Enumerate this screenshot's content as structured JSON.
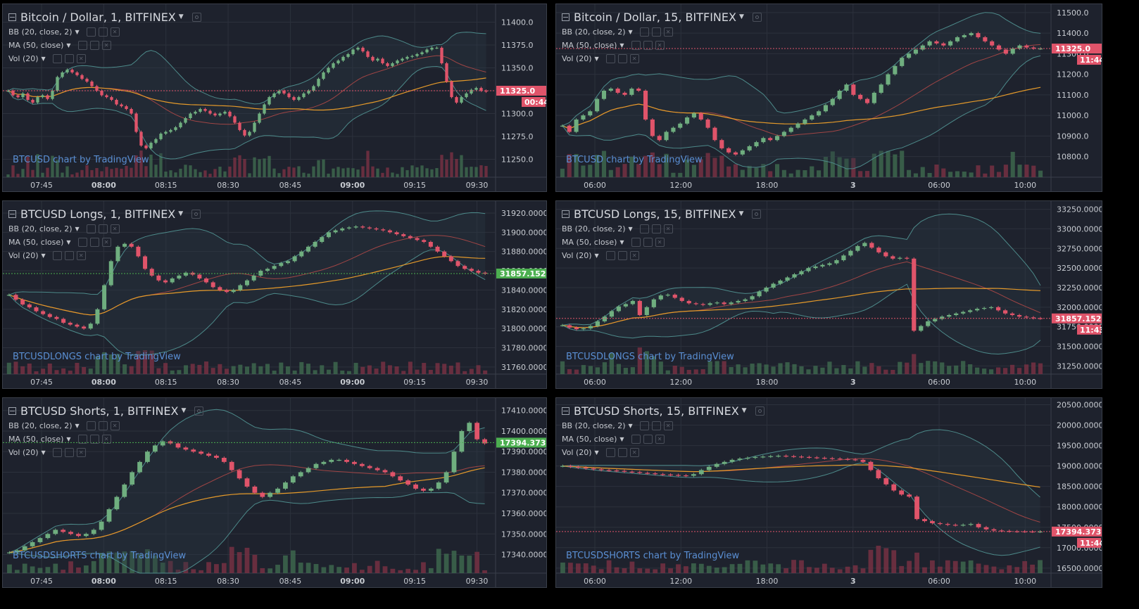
{
  "colors": {
    "background": "#1e222d",
    "grid": "#2c313c",
    "up": "#6fae7f",
    "down": "#e0546a",
    "bb": "#4d8a8a",
    "ma": "#e59a2a",
    "basis": "#a04545",
    "price_badge_red": "#e0546a",
    "price_badge_green": "#4caf50",
    "watermark": "#5a8fd4"
  },
  "panels": [
    {
      "id": "p1",
      "title": "Bitcoin / Dollar, 1, BITFINEX",
      "indicators": [
        "BB (20, close, 2)",
        "MA (50, close)",
        "Vol (20)"
      ],
      "watermark": "BTCUSD chart by TradingView",
      "y_ticks": [
        "11400.0",
        "11375.0",
        "11350.0",
        "11325.0",
        "11300.0",
        "11275.0",
        "11250.0"
      ],
      "x_ticks": [
        "07:45",
        "08:00",
        "08:15",
        "08:30",
        "08:45",
        "09:00",
        "09:15",
        "09:30"
      ],
      "x_bold": [
        "08:00",
        "09:00"
      ],
      "price_label": "11325.0",
      "countdown": "00:44",
      "badge_color": "red"
    },
    {
      "id": "p2",
      "title": "Bitcoin / Dollar, 15, BITFINEX",
      "indicators": [
        "BB (20, close, 2)",
        "MA (50, close)",
        "Vol (20)"
      ],
      "watermark": "BTCUSD chart by TradingView",
      "y_ticks": [
        "11500.0",
        "11400.0",
        "11300.0",
        "11200.0",
        "11100.0",
        "11000.0",
        "10900.0",
        "10800.0"
      ],
      "x_ticks": [
        "06:00",
        "12:00",
        "18:00",
        "3",
        "06:00",
        "10:00"
      ],
      "x_bold": [
        "3"
      ],
      "price_label": "11325.0",
      "countdown": "11:44",
      "badge_color": "red"
    },
    {
      "id": "p3",
      "title": "BTCUSD Longs, 1, BITFINEX",
      "indicators": [
        "BB (20, close, 2)",
        "MA (50, close)",
        "Vol (20)"
      ],
      "watermark": "BTCUSDLONGS chart by TradingView",
      "y_ticks": [
        "31920.0000",
        "31900.0000",
        "31880.0000",
        "31860.0000",
        "31840.0000",
        "31820.0000",
        "31800.0000",
        "31780.0000",
        "31760.0000"
      ],
      "x_ticks": [
        "07:45",
        "08:00",
        "08:15",
        "08:30",
        "08:45",
        "09:00",
        "09:15",
        "09:30"
      ],
      "x_bold": [
        "08:00",
        "09:00"
      ],
      "price_label": "31857.1523",
      "countdown": "",
      "badge_color": "green"
    },
    {
      "id": "p4",
      "title": "BTCUSD Longs, 15, BITFINEX",
      "indicators": [
        "BB (20, close, 2)",
        "MA (50, close)",
        "Vol (20)"
      ],
      "watermark": "BTCUSDLONGS chart by TradingView",
      "y_ticks": [
        "33250.0000",
        "33000.0000",
        "32750.0000",
        "32500.0000",
        "32250.0000",
        "32000.0000",
        "31750.0000",
        "31500.0000",
        "31250.0000"
      ],
      "x_ticks": [
        "06:00",
        "12:00",
        "18:00",
        "3",
        "06:00",
        "10:00"
      ],
      "x_bold": [
        "3"
      ],
      "price_label": "31857.1523",
      "countdown": "11:43",
      "badge_color": "red"
    },
    {
      "id": "p5",
      "title": "BTCUSD Shorts, 1, BITFINEX",
      "indicators": [
        "BB (20, close, 2)",
        "MA (50, close)",
        "Vol (20)"
      ],
      "watermark": "BTCUSDSHORTS chart by TradingView",
      "y_ticks": [
        "17410.0000",
        "17400.0000",
        "17390.0000",
        "17380.0000",
        "17370.0000",
        "17360.0000",
        "17350.0000",
        "17340.0000"
      ],
      "x_ticks": [
        "07:45",
        "08:00",
        "08:15",
        "08:30",
        "08:45",
        "09:00",
        "09:15",
        "09:30"
      ],
      "x_bold": [
        "08:00",
        "09:00"
      ],
      "price_label": "17394.3738",
      "countdown": "",
      "badge_color": "green"
    },
    {
      "id": "p6",
      "title": "BTCUSD Shorts, 15, BITFINEX",
      "indicators": [
        "BB (20, close, 2)",
        "MA (50, close)",
        "Vol (20)"
      ],
      "watermark": "BTCUSDSHORTS chart by TradingView",
      "y_ticks": [
        "20500.0000",
        "20000.0000",
        "19500.0000",
        "19000.0000",
        "18500.0000",
        "18000.0000",
        "17500.0000",
        "17000.0000",
        "16500.0000"
      ],
      "x_ticks": [
        "06:00",
        "12:00",
        "18:00",
        "3",
        "06:00",
        "10:00"
      ],
      "x_bold": [
        "3"
      ],
      "price_label": "17394.3738",
      "countdown": "11:44",
      "badge_color": "red"
    }
  ],
  "chart_data": [
    {
      "type": "candlestick",
      "title": "Bitcoin / Dollar, 1, BITFINEX",
      "ylim": [
        11235,
        11415
      ],
      "current_price": 11325.0,
      "close": [
        11325,
        11320,
        11318,
        11322,
        11315,
        11312,
        11318,
        11320,
        11316,
        11325,
        11340,
        11345,
        11348,
        11345,
        11342,
        11338,
        11335,
        11330,
        11325,
        11320,
        11318,
        11315,
        11310,
        11308,
        11305,
        11300,
        11280,
        11265,
        11262,
        11268,
        11272,
        11278,
        11280,
        11282,
        11285,
        11290,
        11295,
        11300,
        11302,
        11305,
        11303,
        11300,
        11298,
        11300,
        11302,
        11297,
        11290,
        11282,
        11276,
        11280,
        11290,
        11300,
        11310,
        11318,
        11322,
        11325,
        11322,
        11318,
        11315,
        11318,
        11322,
        11325,
        11330,
        11338,
        11345,
        11350,
        11355,
        11358,
        11362,
        11365,
        11370,
        11372,
        11368,
        11362,
        11358,
        11360,
        11355,
        11352,
        11355,
        11358,
        11360,
        11362,
        11363,
        11365,
        11367,
        11370,
        11372,
        11372,
        11355,
        11335,
        11318,
        11312,
        11318,
        11322,
        11326,
        11328,
        11325,
        11324
      ]
    },
    {
      "type": "candlestick",
      "title": "Bitcoin / Dollar, 15, BITFINEX",
      "ylim": [
        10720,
        11520
      ],
      "current_price": 11325.0,
      "close": [
        10950,
        10920,
        10980,
        11000,
        11020,
        11080,
        11120,
        11130,
        11110,
        11100,
        11130,
        11120,
        10980,
        10900,
        10880,
        10920,
        10940,
        10960,
        10990,
        11010,
        10980,
        10940,
        10880,
        10840,
        10820,
        10810,
        10830,
        10850,
        10870,
        10890,
        10880,
        10900,
        10920,
        10940,
        10960,
        10980,
        11000,
        11020,
        11050,
        11080,
        11120,
        11150,
        11100,
        11080,
        11060,
        11110,
        11150,
        11200,
        11240,
        11280,
        11300,
        11320,
        11340,
        11360,
        11350,
        11340,
        11360,
        11380,
        11390,
        11400,
        11380,
        11360,
        11340,
        11320,
        11300,
        11325,
        11340,
        11330,
        11325,
        11325
      ]
    },
    {
      "type": "candlestick",
      "title": "BTCUSD Longs, 1, BITFINEX",
      "ylim": [
        31757,
        31928
      ],
      "current_price": 31857.1523,
      "close": [
        31835,
        31830,
        31825,
        31822,
        31818,
        31815,
        31812,
        31810,
        31806,
        31804,
        31802,
        31800,
        31805,
        31820,
        31845,
        31870,
        31885,
        31888,
        31885,
        31875,
        31862,
        31855,
        31850,
        31848,
        31852,
        31855,
        31858,
        31856,
        31852,
        31848,
        31843,
        31840,
        31838,
        31840,
        31845,
        31850,
        31855,
        31860,
        31862,
        31865,
        31868,
        31870,
        31875,
        31880,
        31885,
        31890,
        31895,
        31900,
        31902,
        31904,
        31905,
        31906,
        31905,
        31904,
        31903,
        31902,
        31900,
        31898,
        31896,
        31894,
        31892,
        31890,
        31885,
        31880,
        31875,
        31870,
        31865,
        31862,
        31860,
        31858,
        31857
      ]
    },
    {
      "type": "candlestick",
      "title": "BTCUSD Longs, 15, BITFINEX",
      "ylim": [
        31200,
        33300
      ],
      "current_price": 31857.1523,
      "close": [
        31770,
        31740,
        31720,
        31730,
        31760,
        31820,
        31880,
        31950,
        32010,
        32040,
        32080,
        31900,
        32000,
        32100,
        32150,
        32160,
        32120,
        32080,
        32050,
        32040,
        32030,
        32050,
        32060,
        32040,
        32060,
        32080,
        32100,
        32140,
        32200,
        32250,
        32300,
        32340,
        32380,
        32420,
        32460,
        32500,
        32520,
        32540,
        32560,
        32600,
        32660,
        32720,
        32780,
        32820,
        32760,
        32700,
        32650,
        32620,
        32630,
        32620,
        31700,
        31760,
        31820,
        31850,
        31880,
        31900,
        31920,
        31940,
        31960,
        31980,
        31990,
        32000,
        31960,
        31920,
        31900,
        31880,
        31870,
        31860,
        31857
      ]
    },
    {
      "type": "candlestick",
      "title": "BTCUSD Shorts, 1, BITFINEX",
      "ylim": [
        17333,
        17414
      ],
      "current_price": 17394.3738,
      "close": [
        17341,
        17342,
        17344,
        17346,
        17348,
        17350,
        17352,
        17351,
        17350,
        17349,
        17350,
        17352,
        17356,
        17362,
        17368,
        17374,
        17380,
        17385,
        17390,
        17393,
        17395,
        17394,
        17392,
        17391,
        17390,
        17389,
        17388,
        17387,
        17385,
        17381,
        17377,
        17373,
        17370,
        17368,
        17370,
        17372,
        17375,
        17378,
        17380,
        17382,
        17384,
        17385,
        17386,
        17386,
        17385,
        17384,
        17383,
        17382,
        17381,
        17380,
        17378,
        17376,
        17374,
        17372,
        17371,
        17372,
        17375,
        17380,
        17390,
        17400,
        17404,
        17396,
        17394
      ]
    },
    {
      "type": "candlestick",
      "title": "BTCUSD Shorts, 15, BITFINEX",
      "ylim": [
        16480,
        20560
      ],
      "current_price": 17394.3738,
      "close": [
        19000,
        18980,
        18960,
        18940,
        18920,
        18900,
        18890,
        18880,
        18860,
        18850,
        18830,
        18820,
        18800,
        18790,
        18780,
        18770,
        18760,
        18800,
        18900,
        18980,
        19050,
        19100,
        19150,
        19180,
        19200,
        19220,
        19230,
        19240,
        19250,
        19240,
        19230,
        19220,
        19210,
        19200,
        19190,
        19180,
        19170,
        19160,
        19150,
        19100,
        18900,
        18700,
        18550,
        18400,
        18300,
        18250,
        17700,
        17650,
        17600,
        17580,
        17560,
        17550,
        17560,
        17580,
        17500,
        17450,
        17420,
        17410,
        17400,
        17398,
        17395,
        17394,
        17394
      ]
    }
  ]
}
